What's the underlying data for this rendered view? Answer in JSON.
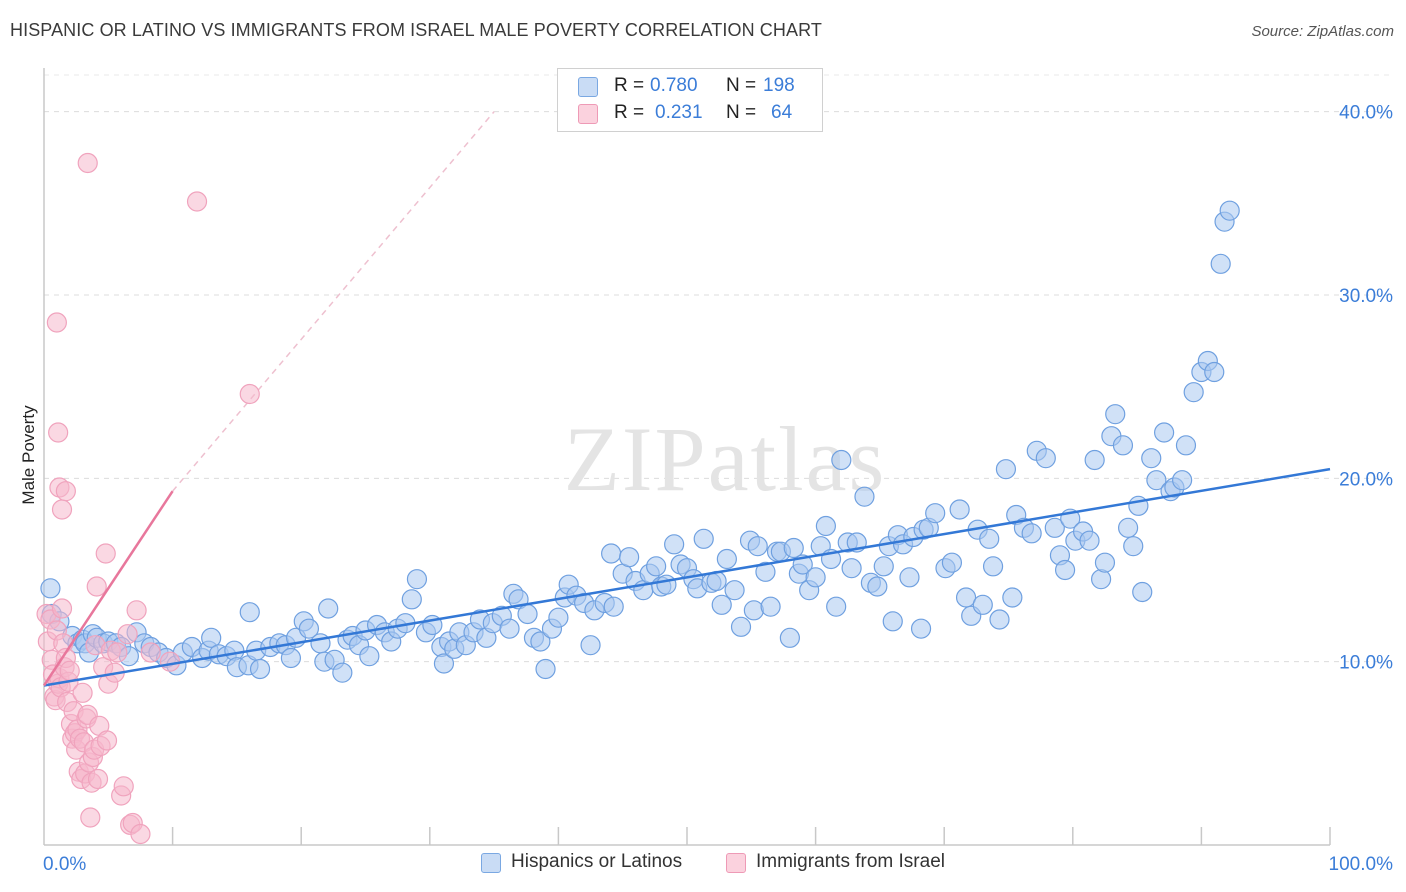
{
  "title": "HISPANIC OR LATINO VS IMMIGRANTS FROM ISRAEL MALE POVERTY CORRELATION CHART",
  "source": "Source: ZipAtlas.com",
  "watermark": "ZIPatlas",
  "legend_stats": [
    {
      "r_label": "R =",
      "r_value": "0.780",
      "n_label": "N =",
      "n_value": "198",
      "color": "#a9c8f0"
    },
    {
      "r_label": "R =",
      "r_value": "0.231",
      "n_label": "N =",
      "n_value": "64",
      "color": "#f6b8cc"
    }
  ],
  "legend": [
    {
      "label": "Hispanics or Latinos",
      "color": "#a9c8f0"
    },
    {
      "label": "Immigrants from Israel",
      "color": "#f6b8cc"
    }
  ],
  "chart_data": {
    "type": "scatter",
    "xlabel": "",
    "ylabel": "Male Poverty",
    "xlim": [
      0,
      100
    ],
    "ylim": [
      0,
      42
    ],
    "x_tick_labels": [
      {
        "value": 0,
        "label": "0.0%"
      },
      {
        "value": 100,
        "label": "100.0%"
      }
    ],
    "y_tick_labels": [
      {
        "value": 10,
        "label": "10.0%"
      },
      {
        "value": 20,
        "label": "20.0%"
      },
      {
        "value": 30,
        "label": "30.0%"
      },
      {
        "value": 40,
        "label": "40.0%"
      }
    ],
    "grid": "horizontal dashed",
    "series": [
      {
        "name": "Hispanics or Latinos",
        "color": "#6fa0e0",
        "fill": "#a9c8f0",
        "trend": {
          "x": [
            0,
            100
          ],
          "y": [
            8.7,
            20.5
          ],
          "style": "solid",
          "color": "#3378d6"
        },
        "points": [
          [
            0.5,
            14.0
          ],
          [
            0.6,
            12.6
          ],
          [
            1.2,
            12.2
          ],
          [
            2.2,
            11.4
          ],
          [
            2.6,
            11.0
          ],
          [
            3.0,
            11.2
          ],
          [
            3.2,
            11.0
          ],
          [
            3.5,
            10.5
          ],
          [
            3.8,
            11.5
          ],
          [
            4.1,
            11.3
          ],
          [
            4.6,
            11.0
          ],
          [
            5.0,
            11.1
          ],
          [
            5.6,
            11.0
          ],
          [
            6.0,
            10.8
          ],
          [
            6.6,
            10.3
          ],
          [
            7.2,
            11.6
          ],
          [
            7.8,
            11.0
          ],
          [
            8.3,
            10.8
          ],
          [
            8.9,
            10.5
          ],
          [
            9.5,
            10.2
          ],
          [
            10.3,
            9.8
          ],
          [
            10.8,
            10.5
          ],
          [
            11.5,
            10.8
          ],
          [
            12.3,
            10.2
          ],
          [
            12.8,
            10.6
          ],
          [
            13.0,
            11.3
          ],
          [
            13.6,
            10.4
          ],
          [
            14.2,
            10.3
          ],
          [
            14.8,
            10.6
          ],
          [
            15.0,
            9.7
          ],
          [
            15.9,
            9.8
          ],
          [
            16.0,
            12.7
          ],
          [
            16.5,
            10.6
          ],
          [
            16.8,
            9.6
          ],
          [
            17.6,
            10.8
          ],
          [
            18.3,
            11.0
          ],
          [
            18.8,
            10.9
          ],
          [
            19.2,
            10.2
          ],
          [
            19.6,
            11.3
          ],
          [
            20.2,
            12.2
          ],
          [
            20.6,
            11.8
          ],
          [
            21.5,
            11.0
          ],
          [
            21.8,
            10.0
          ],
          [
            22.1,
            12.9
          ],
          [
            22.6,
            10.1
          ],
          [
            23.2,
            9.4
          ],
          [
            23.6,
            11.2
          ],
          [
            24.0,
            11.4
          ],
          [
            24.5,
            10.9
          ],
          [
            25.0,
            11.7
          ],
          [
            25.3,
            10.3
          ],
          [
            25.9,
            12.0
          ],
          [
            26.5,
            11.6
          ],
          [
            27.0,
            11.1
          ],
          [
            27.5,
            11.8
          ],
          [
            28.1,
            12.1
          ],
          [
            28.6,
            13.4
          ],
          [
            29.0,
            14.5
          ],
          [
            29.7,
            11.6
          ],
          [
            30.2,
            12.0
          ],
          [
            30.9,
            10.8
          ],
          [
            31.1,
            9.9
          ],
          [
            31.5,
            11.1
          ],
          [
            31.9,
            10.7
          ],
          [
            32.3,
            11.6
          ],
          [
            32.8,
            10.9
          ],
          [
            33.4,
            11.6
          ],
          [
            33.9,
            12.3
          ],
          [
            34.4,
            11.3
          ],
          [
            34.9,
            12.1
          ],
          [
            35.6,
            12.5
          ],
          [
            36.2,
            11.8
          ],
          [
            36.5,
            13.7
          ],
          [
            36.9,
            13.4
          ],
          [
            37.6,
            12.6
          ],
          [
            38.1,
            11.3
          ],
          [
            38.6,
            11.1
          ],
          [
            39.0,
            9.6
          ],
          [
            39.5,
            11.8
          ],
          [
            40.0,
            12.4
          ],
          [
            40.5,
            13.5
          ],
          [
            40.8,
            14.2
          ],
          [
            41.4,
            13.6
          ],
          [
            42.0,
            13.2
          ],
          [
            42.5,
            10.9
          ],
          [
            42.8,
            12.8
          ],
          [
            43.6,
            13.2
          ],
          [
            44.1,
            15.9
          ],
          [
            44.3,
            13.0
          ],
          [
            45.0,
            14.8
          ],
          [
            45.5,
            15.7
          ],
          [
            46.0,
            14.4
          ],
          [
            46.6,
            13.9
          ],
          [
            47.1,
            14.8
          ],
          [
            47.6,
            15.2
          ],
          [
            48.0,
            14.1
          ],
          [
            48.4,
            14.2
          ],
          [
            49.0,
            16.4
          ],
          [
            49.5,
            15.3
          ],
          [
            50.0,
            15.1
          ],
          [
            50.5,
            14.5
          ],
          [
            50.8,
            14.0
          ],
          [
            51.3,
            16.7
          ],
          [
            51.9,
            14.3
          ],
          [
            52.3,
            14.4
          ],
          [
            52.7,
            13.1
          ],
          [
            53.1,
            15.6
          ],
          [
            53.7,
            13.9
          ],
          [
            54.2,
            11.9
          ],
          [
            54.9,
            16.6
          ],
          [
            55.2,
            12.8
          ],
          [
            55.5,
            16.3
          ],
          [
            56.1,
            14.9
          ],
          [
            56.5,
            13.0
          ],
          [
            57.0,
            16.0
          ],
          [
            57.3,
            16.0
          ],
          [
            58.0,
            11.3
          ],
          [
            58.3,
            16.2
          ],
          [
            58.7,
            14.8
          ],
          [
            59.0,
            15.3
          ],
          [
            59.5,
            13.9
          ],
          [
            60.0,
            14.6
          ],
          [
            60.4,
            16.3
          ],
          [
            60.8,
            17.4
          ],
          [
            61.2,
            15.6
          ],
          [
            61.6,
            13.0
          ],
          [
            62.0,
            21.0
          ],
          [
            62.5,
            16.5
          ],
          [
            62.8,
            15.1
          ],
          [
            63.2,
            16.5
          ],
          [
            63.8,
            19.0
          ],
          [
            64.3,
            14.3
          ],
          [
            64.8,
            14.1
          ],
          [
            65.3,
            15.2
          ],
          [
            65.7,
            16.3
          ],
          [
            66.0,
            12.2
          ],
          [
            66.4,
            16.9
          ],
          [
            66.8,
            16.4
          ],
          [
            67.3,
            14.6
          ],
          [
            67.6,
            16.8
          ],
          [
            68.2,
            11.8
          ],
          [
            68.4,
            17.2
          ],
          [
            68.8,
            17.3
          ],
          [
            69.3,
            18.1
          ],
          [
            70.1,
            15.1
          ],
          [
            70.6,
            15.4
          ],
          [
            71.2,
            18.3
          ],
          [
            71.7,
            13.5
          ],
          [
            72.1,
            12.5
          ],
          [
            72.6,
            17.2
          ],
          [
            73.0,
            13.1
          ],
          [
            73.5,
            16.7
          ],
          [
            73.8,
            15.2
          ],
          [
            74.3,
            12.3
          ],
          [
            74.8,
            20.5
          ],
          [
            75.3,
            13.5
          ],
          [
            75.6,
            18.0
          ],
          [
            76.2,
            17.3
          ],
          [
            76.8,
            17.0
          ],
          [
            77.2,
            21.5
          ],
          [
            77.9,
            21.1
          ],
          [
            78.6,
            17.3
          ],
          [
            79.0,
            15.8
          ],
          [
            79.4,
            15.0
          ],
          [
            79.8,
            17.8
          ],
          [
            80.2,
            16.6
          ],
          [
            80.8,
            17.1
          ],
          [
            81.3,
            16.6
          ],
          [
            81.7,
            21.0
          ],
          [
            82.2,
            14.5
          ],
          [
            82.5,
            15.4
          ],
          [
            83.0,
            22.3
          ],
          [
            83.3,
            23.5
          ],
          [
            83.9,
            21.8
          ],
          [
            84.3,
            17.3
          ],
          [
            84.7,
            16.3
          ],
          [
            85.1,
            18.5
          ],
          [
            85.4,
            13.8
          ],
          [
            86.1,
            21.1
          ],
          [
            86.5,
            19.9
          ],
          [
            87.1,
            22.5
          ],
          [
            87.6,
            19.3
          ],
          [
            87.9,
            19.5
          ],
          [
            88.5,
            19.9
          ],
          [
            88.8,
            21.8
          ],
          [
            89.4,
            24.7
          ],
          [
            90.0,
            25.8
          ],
          [
            90.5,
            26.4
          ],
          [
            91.0,
            25.8
          ],
          [
            91.5,
            31.7
          ],
          [
            91.8,
            34.0
          ],
          [
            92.2,
            34.6
          ]
        ]
      },
      {
        "name": "Immigrants from Israel",
        "color": "#f0a3bd",
        "fill": "#f6b8cc",
        "trend": {
          "x": [
            0,
            10
          ],
          "y": [
            8.7,
            19.3
          ],
          "style": "solid",
          "color": "#e8779c"
        },
        "trend_extension": {
          "x": [
            10,
            35
          ],
          "y": [
            19.3,
            40.0
          ],
          "style": "dashed",
          "color": "#eec0cf"
        },
        "points": [
          [
            0.2,
            12.6
          ],
          [
            0.3,
            11.1
          ],
          [
            0.5,
            12.3
          ],
          [
            0.6,
            10.1
          ],
          [
            0.7,
            9.3
          ],
          [
            0.8,
            8.1
          ],
          [
            0.9,
            7.9
          ],
          [
            1.0,
            11.7
          ],
          [
            1.1,
            8.8
          ],
          [
            1.2,
            9.1
          ],
          [
            1.3,
            8.6
          ],
          [
            1.4,
            12.9
          ],
          [
            1.5,
            11.0
          ],
          [
            1.6,
            9.7
          ],
          [
            1.7,
            10.2
          ],
          [
            1.8,
            7.8
          ],
          [
            1.9,
            8.9
          ],
          [
            2.0,
            9.5
          ],
          [
            2.1,
            6.6
          ],
          [
            2.2,
            5.8
          ],
          [
            2.3,
            7.3
          ],
          [
            2.4,
            6.1
          ],
          [
            2.5,
            5.2
          ],
          [
            2.6,
            6.3
          ],
          [
            2.7,
            4.0
          ],
          [
            2.8,
            5.8
          ],
          [
            2.9,
            3.6
          ],
          [
            3.0,
            8.3
          ],
          [
            3.1,
            5.6
          ],
          [
            3.2,
            3.9
          ],
          [
            3.3,
            6.9
          ],
          [
            3.4,
            7.1
          ],
          [
            3.5,
            4.5
          ],
          [
            3.6,
            1.5
          ],
          [
            3.7,
            3.4
          ],
          [
            3.8,
            4.8
          ],
          [
            3.9,
            5.2
          ],
          [
            4.0,
            10.9
          ],
          [
            4.1,
            14.1
          ],
          [
            4.2,
            3.6
          ],
          [
            4.3,
            6.5
          ],
          [
            4.4,
            5.4
          ],
          [
            4.6,
            9.7
          ],
          [
            4.8,
            15.9
          ],
          [
            4.9,
            5.7
          ],
          [
            5.0,
            8.8
          ],
          [
            5.2,
            10.6
          ],
          [
            5.5,
            9.4
          ],
          [
            5.7,
            10.5
          ],
          [
            6.0,
            2.7
          ],
          [
            6.2,
            3.2
          ],
          [
            6.5,
            11.5
          ],
          [
            6.7,
            1.1
          ],
          [
            6.9,
            1.2
          ],
          [
            7.2,
            12.8
          ],
          [
            7.5,
            0.6
          ],
          [
            8.3,
            10.5
          ],
          [
            9.8,
            10.0
          ],
          [
            1.0,
            28.5
          ],
          [
            1.1,
            22.5
          ],
          [
            1.2,
            19.5
          ],
          [
            1.4,
            18.3
          ],
          [
            1.7,
            19.3
          ],
          [
            3.4,
            37.2
          ],
          [
            11.9,
            35.1
          ],
          [
            16.0,
            24.6
          ]
        ]
      }
    ]
  }
}
